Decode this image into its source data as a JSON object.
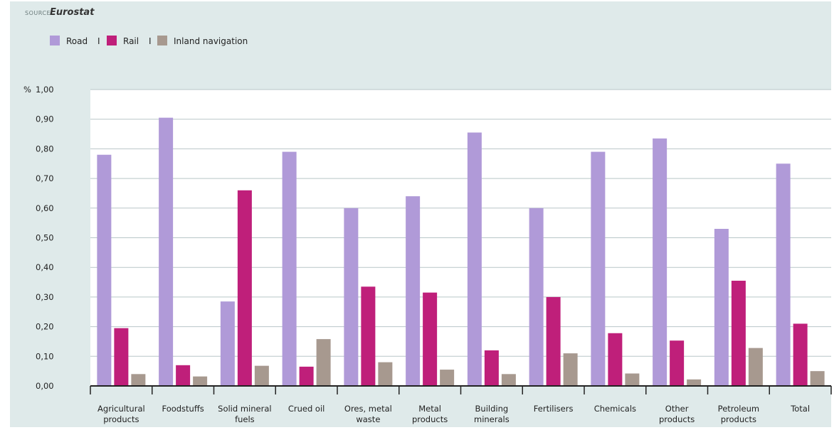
{
  "source": {
    "label": "SOURCE",
    "name": "Eurostat"
  },
  "chart_data": {
    "type": "bar",
    "ylabel": "%",
    "ylim": [
      0,
      1
    ],
    "yticks": [
      "0,00",
      "0,10",
      "0,20",
      "0,30",
      "0,40",
      "0,50",
      "0,60",
      "0,70",
      "0,80",
      "0,90",
      "1,00"
    ],
    "grid": true,
    "legend": {
      "placement": "top-left",
      "separator": "I"
    },
    "categories": [
      [
        "Agricultural",
        "products"
      ],
      [
        "Foodstuffs"
      ],
      [
        "Solid mineral",
        "fuels"
      ],
      [
        "Crued oil"
      ],
      [
        "Ores, metal",
        "waste"
      ],
      [
        "Metal",
        "products"
      ],
      [
        "Building",
        "minerals"
      ],
      [
        "Fertilisers"
      ],
      [
        "Chemicals"
      ],
      [
        "Other",
        "products"
      ],
      [
        "Petroleum",
        "products"
      ],
      [
        "Total"
      ]
    ],
    "series": [
      {
        "name": "Road",
        "color": "#b09ad8",
        "values": [
          0.78,
          0.905,
          0.285,
          0.79,
          0.6,
          0.64,
          0.855,
          0.6,
          0.79,
          0.835,
          0.53,
          0.75
        ]
      },
      {
        "name": "Rail",
        "color": "#bf1f7a",
        "values": [
          0.195,
          0.07,
          0.66,
          0.065,
          0.335,
          0.315,
          0.12,
          0.3,
          0.178,
          0.153,
          0.355,
          0.21
        ]
      },
      {
        "name": "Inland navigation",
        "color": "#a7998f",
        "values": [
          0.04,
          0.032,
          0.068,
          0.158,
          0.08,
          0.055,
          0.04,
          0.11,
          0.042,
          0.022,
          0.128,
          0.05
        ]
      }
    ]
  }
}
